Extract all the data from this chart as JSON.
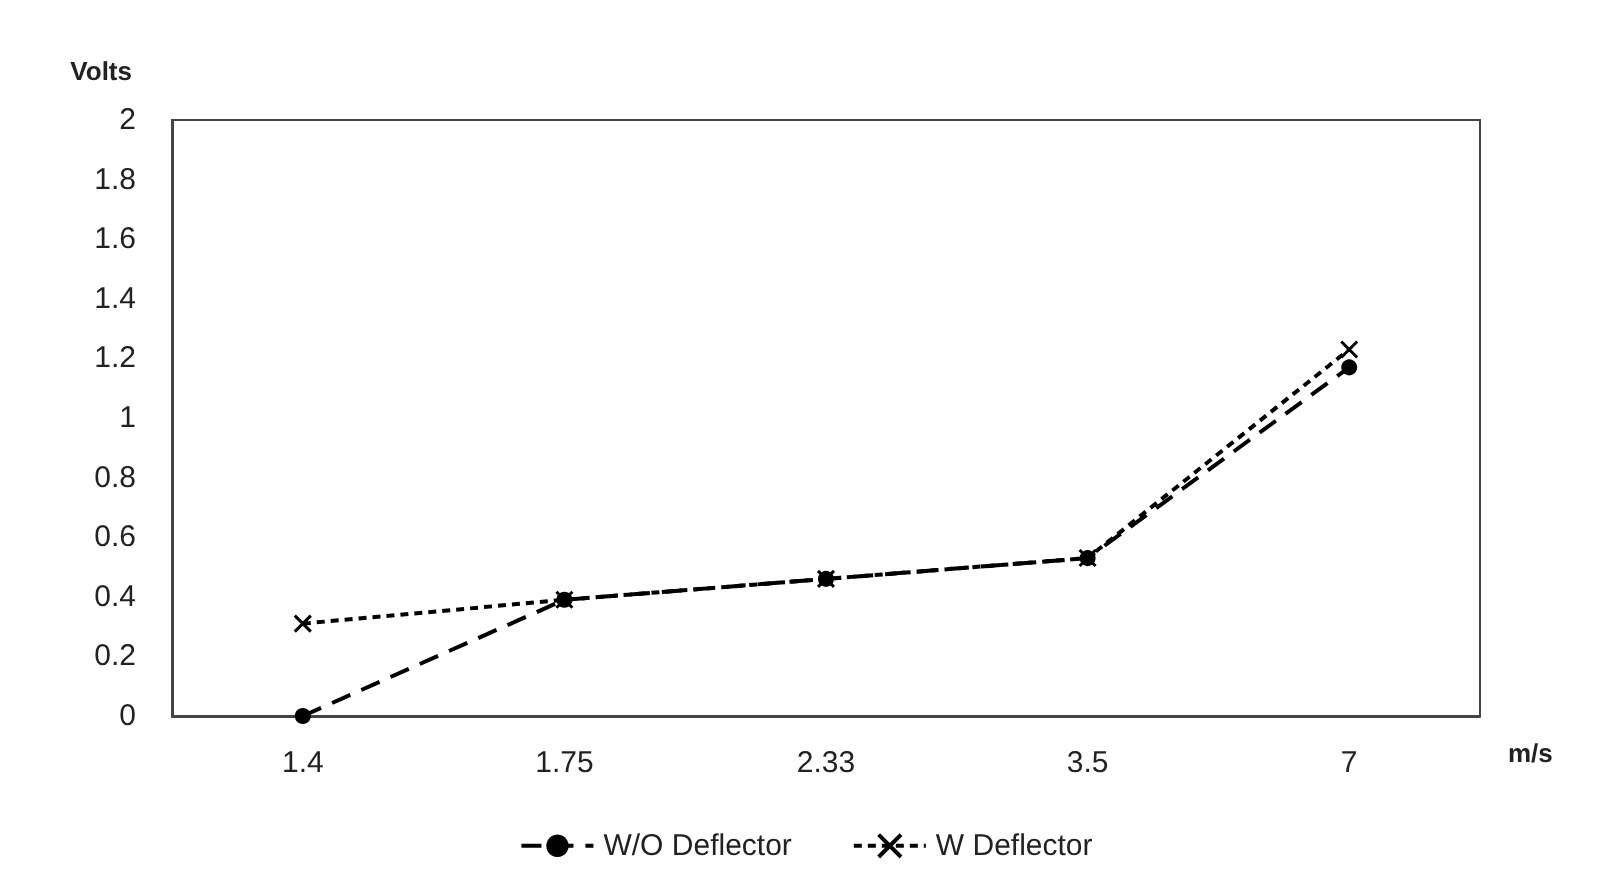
{
  "chart_data": {
    "type": "line",
    "xlabel": "m/s",
    "ylabel": "Volts",
    "categories": [
      "1.4",
      "1.75",
      "2.33",
      "3.5",
      "7"
    ],
    "series": [
      {
        "name": "W/O Deflector",
        "color": "#000000",
        "marker": "circle",
        "line_style": "dashed",
        "values": [
          0,
          0.39,
          0.46,
          0.53,
          1.17
        ]
      },
      {
        "name": "W Deflector",
        "color": "#000000",
        "marker": "cross",
        "line_style": "dotted",
        "values": [
          0.31,
          0.39,
          0.46,
          0.53,
          1.23
        ]
      }
    ],
    "ylim": [
      0,
      2
    ],
    "yticks": [
      0,
      0.2,
      0.4,
      0.6,
      0.8,
      1,
      1.2,
      1.4,
      1.6,
      1.8,
      2
    ],
    "grid": false,
    "legend": "bottom"
  }
}
